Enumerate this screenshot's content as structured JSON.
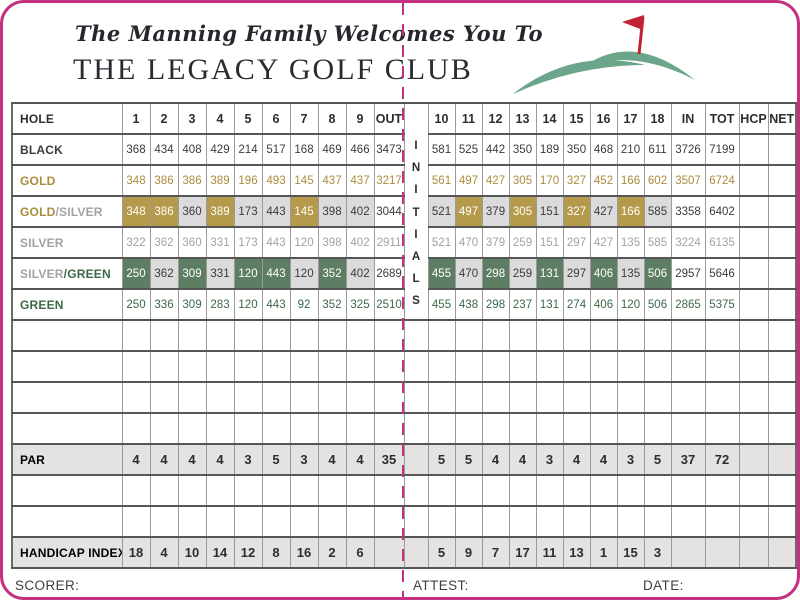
{
  "header": {
    "welcome": "The Manning Family Welcomes You To",
    "club_name": "THE LEGACY GOLF CLUB"
  },
  "colors": {
    "magenta": "#c43181",
    "gold_text": "#ab8c3b",
    "gold_bg": "#b49a4a",
    "silver_text": "#a2a2a2",
    "silver_bg": "#dbdbdb",
    "green_text": "#3c6847",
    "green_bg": "#5d7e62",
    "summary_row_bg": "#e4e3e1",
    "logo_green": "#6ba68a",
    "flag_red": "#c22233"
  },
  "table": {
    "initials_label": "INITIALS",
    "header": {
      "hole": "HOLE",
      "front": [
        "1",
        "2",
        "3",
        "4",
        "5",
        "6",
        "7",
        "8",
        "9"
      ],
      "out": "OUT",
      "back": [
        "10",
        "11",
        "12",
        "13",
        "14",
        "15",
        "16",
        "17",
        "18"
      ],
      "in": "IN",
      "tot": "TOT",
      "hcp": "HCP",
      "net": "NET"
    },
    "tee_rows": [
      {
        "id": "black",
        "label_parts": [
          {
            "text": "BLACK",
            "color": "dark"
          }
        ],
        "value_color": "dark",
        "front": [
          "368",
          "434",
          "408",
          "429",
          "214",
          "517",
          "168",
          "469",
          "466"
        ],
        "out": "3473",
        "back": [
          "581",
          "525",
          "442",
          "350",
          "189",
          "350",
          "468",
          "210",
          "611"
        ],
        "in": "3726",
        "tot": "7199",
        "front_bg": null,
        "back_bg": null
      },
      {
        "id": "gold",
        "label_parts": [
          {
            "text": "GOLD",
            "color": "gold"
          }
        ],
        "value_color": "gold",
        "front": [
          "348",
          "386",
          "386",
          "389",
          "196",
          "493",
          "145",
          "437",
          "437"
        ],
        "out": "3217",
        "back": [
          "561",
          "497",
          "427",
          "305",
          "170",
          "327",
          "452",
          "166",
          "602"
        ],
        "in": "3507",
        "tot": "6724",
        "front_bg": null,
        "back_bg": null
      },
      {
        "id": "gold-silver",
        "label_parts": [
          {
            "text": "GOLD",
            "color": "gold"
          },
          {
            "text": "/SILVER",
            "color": "silver"
          }
        ],
        "value_color": "dark",
        "front": [
          "348",
          "386",
          "360",
          "389",
          "173",
          "443",
          "145",
          "398",
          "402"
        ],
        "out": "3044",
        "back": [
          "521",
          "497",
          "379",
          "305",
          "151",
          "327",
          "427",
          "166",
          "585"
        ],
        "in": "3358",
        "tot": "6402",
        "front_bg": [
          "gold",
          "gold",
          "silver",
          "gold",
          "silver",
          "silver",
          "gold",
          "silver",
          "silver"
        ],
        "back_bg": [
          "silver",
          "gold",
          "silver",
          "gold",
          "silver",
          "gold",
          "silver",
          "gold",
          "silver"
        ]
      },
      {
        "id": "silver",
        "label_parts": [
          {
            "text": "SILVER",
            "color": "silver"
          }
        ],
        "value_color": "silver",
        "front": [
          "322",
          "362",
          "360",
          "331",
          "173",
          "443",
          "120",
          "398",
          "402"
        ],
        "out": "2911",
        "back": [
          "521",
          "470",
          "379",
          "259",
          "151",
          "297",
          "427",
          "135",
          "585"
        ],
        "in": "3224",
        "tot": "6135",
        "front_bg": null,
        "back_bg": null
      },
      {
        "id": "silver-green",
        "label_parts": [
          {
            "text": "SILVER",
            "color": "silver"
          },
          {
            "text": "/GREEN",
            "color": "green"
          }
        ],
        "value_color": "dark",
        "front": [
          "250",
          "362",
          "309",
          "331",
          "120",
          "443",
          "120",
          "352",
          "402"
        ],
        "out": "2689",
        "back": [
          "455",
          "470",
          "298",
          "259",
          "131",
          "297",
          "406",
          "135",
          "506"
        ],
        "in": "2957",
        "tot": "5646",
        "front_bg": [
          "green",
          "silver",
          "green",
          "silver",
          "green",
          "green",
          "silver",
          "green",
          "silver"
        ],
        "back_bg": [
          "green",
          "silver",
          "green",
          "silver",
          "green",
          "silver",
          "green",
          "silver",
          "green"
        ]
      },
      {
        "id": "green",
        "label_parts": [
          {
            "text": "GREEN",
            "color": "green"
          }
        ],
        "value_color": "green",
        "front": [
          "250",
          "336",
          "309",
          "283",
          "120",
          "443",
          "92",
          "352",
          "325"
        ],
        "out": "2510",
        "back": [
          "455",
          "438",
          "298",
          "237",
          "131",
          "274",
          "406",
          "120",
          "506"
        ],
        "in": "2865",
        "tot": "5375",
        "front_bg": null,
        "back_bg": null
      }
    ],
    "empty_rows": {
      "after_tees": 4,
      "after_par": 2
    },
    "par_row": {
      "id": "par",
      "label": "PAR",
      "front": [
        "4",
        "4",
        "4",
        "4",
        "3",
        "5",
        "3",
        "4",
        "4"
      ],
      "out": "35",
      "back": [
        "5",
        "5",
        "4",
        "4",
        "3",
        "4",
        "4",
        "3",
        "5"
      ],
      "in": "37",
      "tot": "72",
      "hcp": "",
      "net": ""
    },
    "handicap_row": {
      "id": "handicap-index",
      "label": "HANDICAP INDEX",
      "front": [
        "18",
        "4",
        "10",
        "14",
        "12",
        "8",
        "16",
        "2",
        "6"
      ],
      "out": "",
      "back": [
        "5",
        "9",
        "7",
        "17",
        "11",
        "13",
        "1",
        "15",
        "3"
      ],
      "in": "",
      "tot": "",
      "hcp": "",
      "net": ""
    }
  },
  "footer": {
    "scorer": "SCORER:",
    "attest": "ATTEST:",
    "date": "DATE:"
  }
}
